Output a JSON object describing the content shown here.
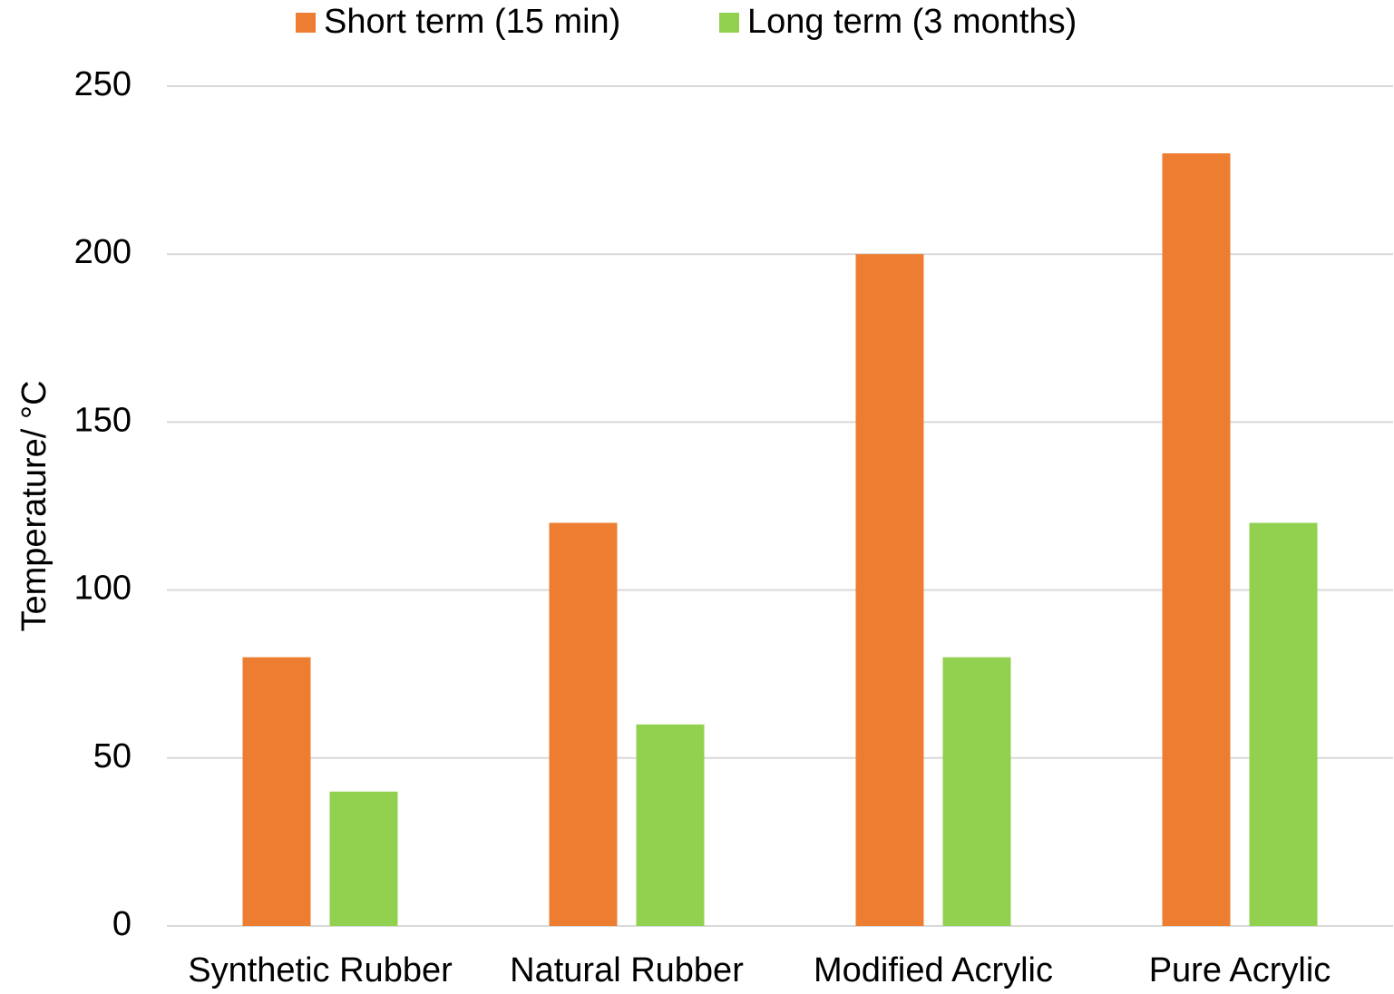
{
  "chart_data": {
    "type": "bar",
    "categories": [
      "Synthetic Rubber",
      "Natural Rubber",
      "Modified Acrylic",
      "Pure Acrylic"
    ],
    "series": [
      {
        "name": "Short term (15 min)",
        "color": "#ed7d31",
        "values": [
          80,
          120,
          200,
          230
        ]
      },
      {
        "name": "Long term (3 months)",
        "color": "#92d050",
        "values": [
          40,
          60,
          80,
          120
        ]
      }
    ],
    "ylabel": "Temperature/ °C",
    "ylim": [
      0,
      250
    ],
    "yticks": [
      0,
      50,
      100,
      150,
      200,
      250
    ],
    "grid": true,
    "legend": "top"
  }
}
